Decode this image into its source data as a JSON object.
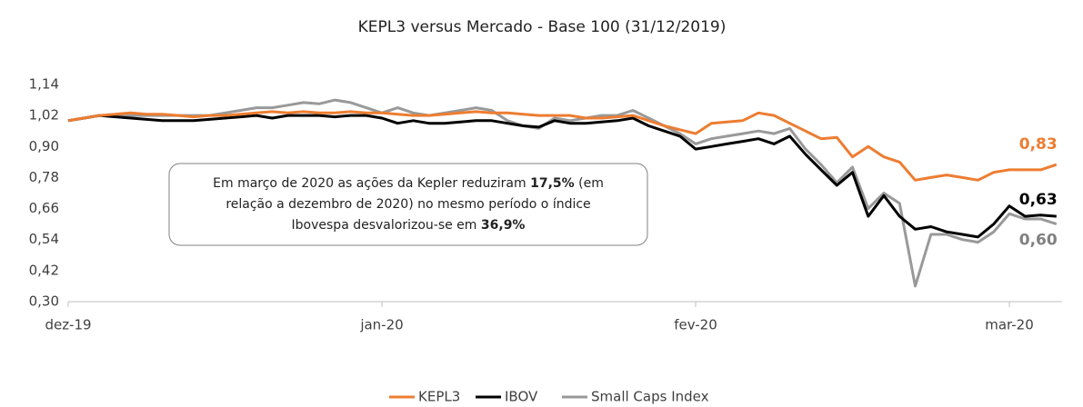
{
  "chart_data": {
    "type": "line",
    "title": "KEPL3 versus Mercado - Base 100 (31/12/2019)",
    "categories": [
      "dez-19",
      null,
      null,
      null,
      null,
      null,
      null,
      null,
      null,
      null,
      null,
      null,
      null,
      null,
      null,
      null,
      null,
      null,
      null,
      null,
      "jan-20",
      null,
      null,
      null,
      null,
      null,
      null,
      null,
      null,
      null,
      null,
      null,
      null,
      null,
      null,
      null,
      null,
      null,
      null,
      null,
      "fev-20",
      null,
      null,
      null,
      null,
      null,
      null,
      null,
      null,
      null,
      null,
      null,
      null,
      null,
      null,
      null,
      null,
      null,
      null,
      null,
      "mar-20",
      null,
      null,
      null
    ],
    "ylim": [
      0.3,
      1.14
    ],
    "yticks": [
      {
        "value": 0.3,
        "label": "0,30"
      },
      {
        "value": 0.42,
        "label": "0,42"
      },
      {
        "value": 0.54,
        "label": "0,54"
      },
      {
        "value": 0.66,
        "label": "0,66"
      },
      {
        "value": 0.78,
        "label": "0,78"
      },
      {
        "value": 0.9,
        "label": "0,90"
      },
      {
        "value": 1.02,
        "label": "1,02"
      },
      {
        "value": 1.14,
        "label": "1,14"
      }
    ],
    "grid": false,
    "legend": "bottom",
    "series": [
      {
        "name": "KEPL3",
        "color": "#ed7d31",
        "values": [
          1.0,
          1.01,
          1.02,
          1.025,
          1.03,
          1.025,
          1.025,
          1.02,
          1.015,
          1.02,
          1.02,
          1.025,
          1.03,
          1.035,
          1.03,
          1.035,
          1.03,
          1.03,
          1.035,
          1.03,
          1.03,
          1.025,
          1.02,
          1.02,
          1.025,
          1.03,
          1.035,
          1.03,
          1.03,
          1.025,
          1.02,
          1.02,
          1.02,
          1.01,
          1.01,
          1.015,
          1.02,
          1.0,
          0.98,
          0.965,
          0.95,
          0.99,
          0.995,
          1.0,
          1.03,
          1.02,
          0.99,
          0.96,
          0.93,
          0.935,
          0.86,
          0.9,
          0.86,
          0.84,
          0.77,
          0.78,
          0.79,
          0.78,
          0.77,
          0.8,
          0.81,
          0.81,
          0.81,
          0.83
        ],
        "value_labels": [
          null,
          null,
          null,
          null,
          null,
          null,
          null,
          null,
          null,
          null,
          null,
          null,
          null,
          null,
          null,
          null,
          null,
          null,
          null,
          null,
          null,
          null,
          null,
          null,
          null,
          null,
          null,
          null,
          null,
          null,
          null,
          null,
          null,
          null,
          null,
          null,
          null,
          null,
          null,
          null,
          null,
          null,
          null,
          null,
          null,
          null,
          null,
          null,
          null,
          null,
          null,
          null,
          null,
          null,
          null,
          null,
          null,
          null,
          null,
          null,
          null,
          null,
          null,
          "0,83"
        ]
      },
      {
        "name": "IBOV",
        "color": "#000000",
        "values": [
          1.0,
          1.01,
          1.02,
          1.015,
          1.01,
          1.005,
          1.0,
          1.0,
          1.0,
          1.005,
          1.01,
          1.015,
          1.02,
          1.01,
          1.02,
          1.02,
          1.02,
          1.015,
          1.02,
          1.02,
          1.01,
          0.99,
          1.0,
          0.99,
          0.99,
          0.995,
          1.0,
          1.0,
          0.99,
          0.98,
          0.975,
          1.0,
          0.99,
          0.99,
          0.995,
          1.0,
          1.01,
          0.98,
          0.96,
          0.94,
          0.89,
          0.9,
          0.91,
          0.92,
          0.93,
          0.91,
          0.94,
          0.87,
          0.81,
          0.75,
          0.8,
          0.63,
          0.71,
          0.63,
          0.58,
          0.59,
          0.57,
          0.56,
          0.55,
          0.6,
          0.67,
          0.63,
          0.635,
          0.63
        ],
        "value_labels": [
          null,
          null,
          null,
          null,
          null,
          null,
          null,
          null,
          null,
          null,
          null,
          null,
          null,
          null,
          null,
          null,
          null,
          null,
          null,
          null,
          null,
          null,
          null,
          null,
          null,
          null,
          null,
          null,
          null,
          null,
          null,
          null,
          null,
          null,
          null,
          null,
          null,
          null,
          null,
          null,
          null,
          null,
          null,
          null,
          null,
          null,
          null,
          null,
          null,
          null,
          null,
          null,
          null,
          null,
          null,
          null,
          null,
          null,
          null,
          null,
          null,
          null,
          null,
          "0,63"
        ]
      },
      {
        "name": "Small Caps Index",
        "color": "#999999",
        "values": [
          1.0,
          1.01,
          1.02,
          1.02,
          1.02,
          1.02,
          1.02,
          1.02,
          1.02,
          1.02,
          1.03,
          1.04,
          1.05,
          1.05,
          1.06,
          1.07,
          1.065,
          1.08,
          1.07,
          1.05,
          1.03,
          1.05,
          1.03,
          1.02,
          1.03,
          1.04,
          1.05,
          1.04,
          1.0,
          0.98,
          0.97,
          1.01,
          1.0,
          1.01,
          1.02,
          1.02,
          1.04,
          1.01,
          0.98,
          0.95,
          0.91,
          0.93,
          0.94,
          0.95,
          0.96,
          0.95,
          0.97,
          0.89,
          0.83,
          0.76,
          0.82,
          0.66,
          0.72,
          0.68,
          0.36,
          0.56,
          0.56,
          0.54,
          0.53,
          0.57,
          0.64,
          0.62,
          0.62,
          0.6
        ],
        "value_labels": [
          null,
          null,
          null,
          null,
          null,
          null,
          null,
          null,
          null,
          null,
          null,
          null,
          null,
          null,
          null,
          null,
          null,
          null,
          null,
          null,
          null,
          null,
          null,
          null,
          null,
          null,
          null,
          null,
          null,
          null,
          null,
          null,
          null,
          null,
          null,
          null,
          null,
          null,
          null,
          null,
          null,
          null,
          null,
          null,
          null,
          null,
          null,
          null,
          null,
          null,
          null,
          null,
          null,
          null,
          null,
          null,
          null,
          null,
          null,
          null,
          null,
          null,
          null,
          "0,60"
        ]
      }
    ],
    "annotation": [
      [
        {
          "text": "Em março de 2020 as ações da Kepler reduziram ",
          "bold": false
        },
        {
          "text": "17,5%",
          "bold": true
        },
        {
          "text": " (em",
          "bold": false
        }
      ],
      [
        {
          "text": "relação a dezembro de 2020) no mesmo período o índice",
          "bold": false
        }
      ],
      [
        {
          "text": "Ibovespa desvalorizou-se em ",
          "bold": false
        },
        {
          "text": "36,9%",
          "bold": true
        }
      ]
    ]
  }
}
